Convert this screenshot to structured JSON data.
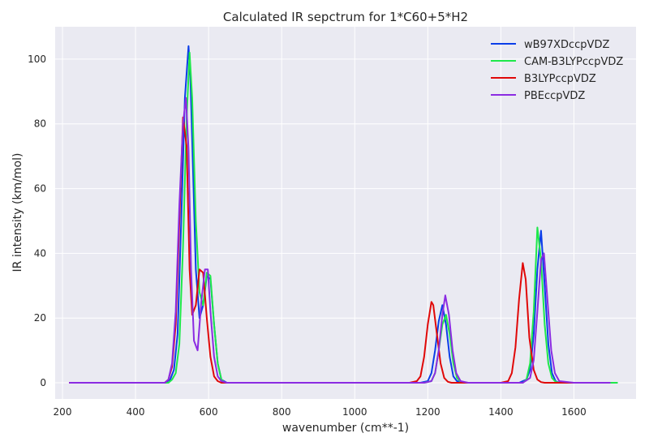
{
  "chart_data": {
    "type": "line",
    "title": "Calculated IR sepctrum for 1*C60+5*H2",
    "xlabel": "wavenumber (cm**-1)",
    "ylabel": "IR intensity (km/mol)",
    "xlim": [
      180,
      1770
    ],
    "ylim": [
      -5,
      110
    ],
    "xticks": [
      200,
      400,
      600,
      800,
      1000,
      1200,
      1400,
      1600
    ],
    "yticks": [
      0,
      20,
      40,
      60,
      80,
      100
    ],
    "grid": true,
    "background": "#eaeaf2",
    "legend_position": "top-right",
    "series": [
      {
        "name": "wB97XDccpVDZ",
        "color": "#0a3ee8",
        "x": [
          218,
          480,
          495,
          505,
          515,
          525,
          535,
          545,
          550,
          555,
          565,
          575,
          585,
          595,
          605,
          615,
          625,
          635,
          650,
          700,
          1150,
          1180,
          1200,
          1210,
          1220,
          1230,
          1240,
          1250,
          1260,
          1270,
          1280,
          1300,
          1400,
          1450,
          1470,
          1480,
          1490,
          1500,
          1510,
          1520,
          1530,
          1540,
          1550,
          1560,
          1600,
          1700
        ],
        "y": [
          0,
          0,
          1,
          4,
          15,
          50,
          88,
          104,
          95,
          75,
          35,
          20,
          24,
          33,
          32,
          18,
          6,
          1,
          0,
          0,
          0,
          0,
          0.5,
          3,
          10,
          19,
          24,
          18,
          8,
          2,
          0.5,
          0,
          0,
          0,
          1,
          4,
          15,
          35,
          47,
          30,
          12,
          3,
          0.5,
          0,
          0,
          0
        ]
      },
      {
        "name": "CAM-B3LYPccpVDZ",
        "color": "#1ee84a",
        "x": [
          218,
          490,
          500,
          510,
          520,
          530,
          540,
          548,
          555,
          565,
          575,
          585,
          595,
          605,
          615,
          625,
          635,
          645,
          660,
          700,
          1160,
          1190,
          1210,
          1220,
          1230,
          1240,
          1250,
          1260,
          1270,
          1280,
          1290,
          1310,
          1400,
          1460,
          1470,
          1480,
          1490,
          1500,
          1510,
          1520,
          1530,
          1540,
          1550,
          1560,
          1600,
          1720
        ],
        "y": [
          0,
          0,
          1,
          3,
          12,
          42,
          82,
          102,
          88,
          50,
          28,
          24,
          34,
          33,
          18,
          6,
          1,
          0,
          0,
          0,
          0,
          0,
          0.5,
          3,
          10,
          18,
          21,
          15,
          6,
          1.5,
          0.3,
          0,
          0,
          0,
          1,
          6,
          22,
          48,
          38,
          18,
          6,
          1.5,
          0.3,
          0,
          0,
          0
        ]
      },
      {
        "name": "B3LYPccpVDZ",
        "color": "#e00808",
        "x": [
          218,
          480,
          490,
          500,
          510,
          520,
          530,
          540,
          548,
          555,
          565,
          575,
          585,
          595,
          605,
          615,
          625,
          635,
          645,
          700,
          1150,
          1170,
          1180,
          1190,
          1200,
          1210,
          1215,
          1225,
          1235,
          1245,
          1255,
          1265,
          1280,
          1400,
          1420,
          1430,
          1440,
          1450,
          1460,
          1468,
          1478,
          1490,
          1500,
          1510,
          1520,
          1600,
          1700
        ],
        "y": [
          0,
          0,
          1,
          5,
          18,
          50,
          82,
          73,
          35,
          21,
          24,
          35,
          34,
          20,
          8,
          2,
          0.5,
          0,
          0,
          0,
          0,
          0.5,
          2,
          8,
          18,
          25,
          24,
          15,
          6,
          1.5,
          0.3,
          0,
          0,
          0,
          0.5,
          3,
          11,
          26,
          37,
          32,
          14,
          4,
          1,
          0.2,
          0,
          0,
          0
        ]
      },
      {
        "name": "PBEccpVDZ",
        "color": "#8b2be2",
        "x": [
          218,
          480,
          490,
          500,
          510,
          520,
          530,
          538,
          545,
          552,
          560,
          570,
          580,
          590,
          598,
          605,
          615,
          625,
          635,
          650,
          700,
          1150,
          1190,
          1210,
          1220,
          1230,
          1240,
          1248,
          1258,
          1268,
          1278,
          1290,
          1310,
          1400,
          1460,
          1480,
          1490,
          1500,
          1510,
          1518,
          1528,
          1538,
          1548,
          1560,
          1600,
          1700
        ],
        "y": [
          0,
          0,
          1,
          6,
          22,
          55,
          80,
          88,
          72,
          35,
          13,
          10,
          25,
          35,
          35,
          22,
          8,
          2,
          0.5,
          0,
          0,
          0,
          0,
          0.5,
          3,
          10,
          21,
          27,
          21,
          10,
          3,
          0.5,
          0,
          0,
          0,
          1.5,
          7,
          22,
          38,
          40,
          25,
          10,
          3,
          0.5,
          0,
          0
        ]
      }
    ]
  }
}
